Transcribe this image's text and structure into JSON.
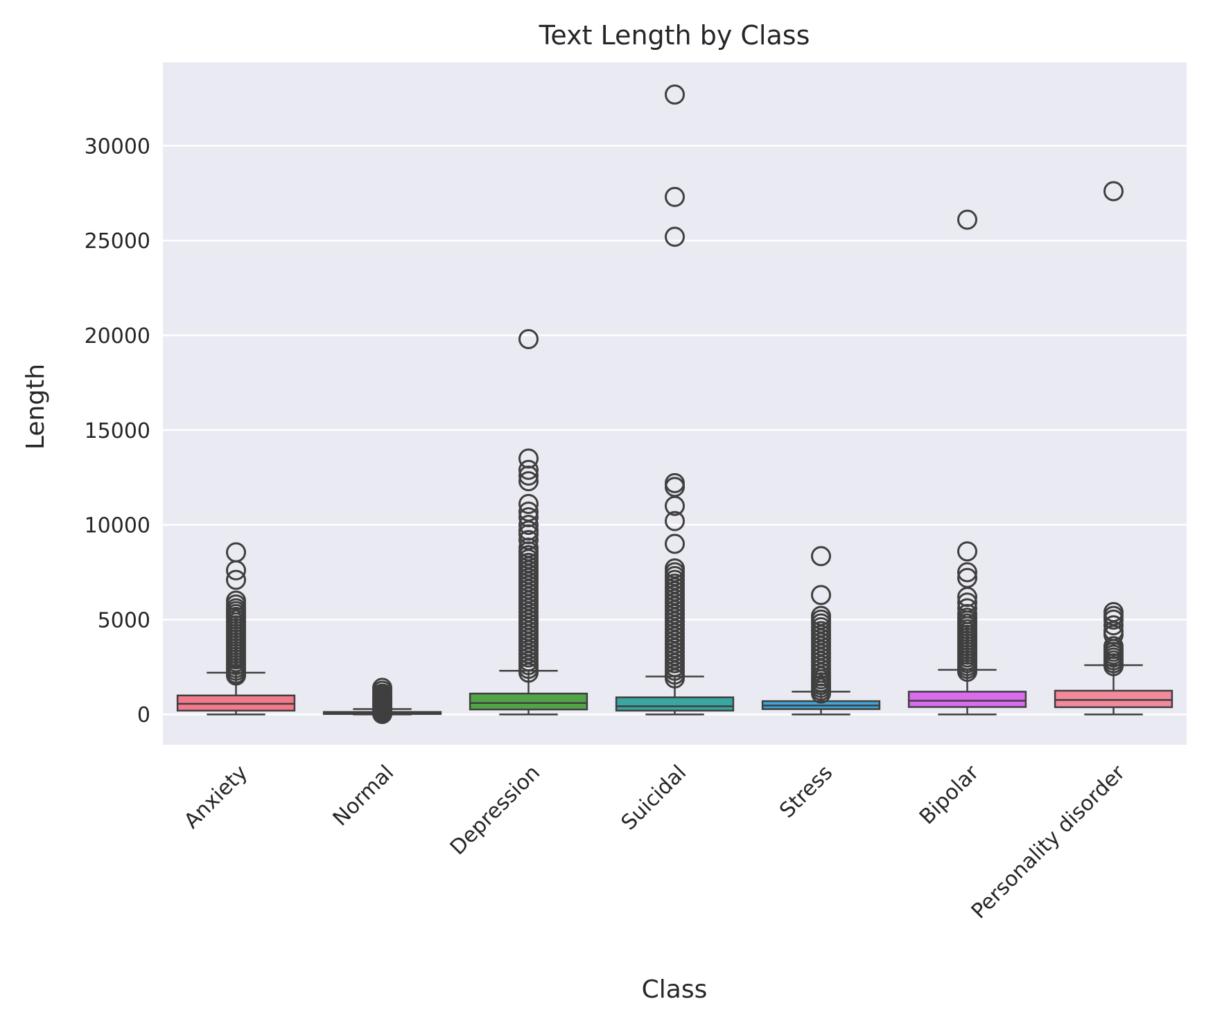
{
  "chart_data": {
    "type": "box",
    "title": "Text Length by Class",
    "xlabel": "Class",
    "ylabel": "Length",
    "ylim": [
      -1600,
      34400
    ],
    "yticks": [
      0,
      5000,
      10000,
      15000,
      20000,
      25000,
      30000
    ],
    "grid": true,
    "legend": "none",
    "categories": [
      "Anxiety",
      "Normal",
      "Depression",
      "Suicidal",
      "Stress",
      "Bipolar",
      "Personality disorder"
    ],
    "series": [
      {
        "category": "Anxiety",
        "color": "#f27a8c",
        "whisker_low": 0,
        "q1": 200,
        "median": 560,
        "q3": 1000,
        "whisker_high": 2200,
        "outliers": [
          2050,
          2150,
          2300,
          2450,
          2600,
          2750,
          2900,
          3050,
          3200,
          3350,
          3500,
          3650,
          3800,
          3950,
          4100,
          4250,
          4400,
          4550,
          4700,
          4850,
          5000,
          5150,
          5300,
          5450,
          5600,
          5800,
          6000,
          7100,
          7600,
          8550
        ]
      },
      {
        "category": "Normal",
        "color": "#c58f2d",
        "whisker_low": 0,
        "q1": 30,
        "median": 70,
        "q3": 130,
        "whisker_high": 280,
        "outliers": [
          20,
          120,
          200,
          300,
          400,
          500,
          600,
          700,
          800,
          900,
          1000,
          1100,
          1250,
          1400
        ]
      },
      {
        "category": "Depression",
        "color": "#52a447",
        "whisker_low": 0,
        "q1": 260,
        "median": 600,
        "q3": 1100,
        "whisker_high": 2300,
        "outliers": [
          2200,
          2400,
          2600,
          2800,
          3000,
          3200,
          3400,
          3600,
          3800,
          4000,
          4200,
          4400,
          4600,
          4800,
          5000,
          5200,
          5400,
          5600,
          5800,
          6000,
          6200,
          6400,
          6600,
          6800,
          7000,
          7200,
          7400,
          7600,
          7800,
          8000,
          8200,
          8400,
          8600,
          8800,
          9200,
          9500,
          9700,
          10000,
          10400,
          10700,
          11100,
          12300,
          12600,
          12900,
          13500,
          19800
        ]
      },
      {
        "category": "Suicidal",
        "color": "#39a7a0",
        "whisker_low": 0,
        "q1": 200,
        "median": 430,
        "q3": 900,
        "whisker_high": 2000,
        "outliers": [
          1900,
          2100,
          2300,
          2500,
          2700,
          2900,
          3100,
          3300,
          3500,
          3700,
          3900,
          4100,
          4300,
          4500,
          4700,
          4900,
          5100,
          5300,
          5500,
          5700,
          5900,
          6100,
          6300,
          6500,
          6700,
          6900,
          7100,
          7300,
          7500,
          7700,
          9000,
          10200,
          11000,
          12000,
          12200,
          25200,
          27300,
          32700
        ]
      },
      {
        "category": "Stress",
        "color": "#3ea6d8",
        "whisker_low": 0,
        "q1": 280,
        "median": 470,
        "q3": 700,
        "whisker_high": 1200,
        "outliers": [
          1100,
          1250,
          1400,
          1550,
          1700,
          1850,
          2000,
          2200,
          2400,
          2600,
          2800,
          3000,
          3200,
          3400,
          3600,
          3800,
          4000,
          4200,
          4400,
          4600,
          4800,
          5000,
          5200,
          6300,
          8350
        ]
      },
      {
        "category": "Bipolar",
        "color": "#d96ced",
        "whisker_low": 0,
        "q1": 390,
        "median": 720,
        "q3": 1200,
        "whisker_high": 2350,
        "outliers": [
          2250,
          2400,
          2550,
          2700,
          2850,
          3000,
          3150,
          3300,
          3450,
          3600,
          3750,
          3900,
          4050,
          4200,
          4350,
          4500,
          4650,
          4800,
          4950,
          5100,
          5300,
          5600,
          5900,
          6200,
          7200,
          7500,
          8600,
          26100
        ]
      },
      {
        "category": "Personality disorder",
        "color": "#f3899c",
        "whisker_low": 0,
        "q1": 380,
        "median": 760,
        "q3": 1250,
        "whisker_high": 2600,
        "outliers": [
          2550,
          2700,
          2850,
          3000,
          3150,
          3300,
          3450,
          3600,
          4200,
          4400,
          4700,
          5000,
          5200,
          5400,
          27600
        ]
      }
    ]
  }
}
